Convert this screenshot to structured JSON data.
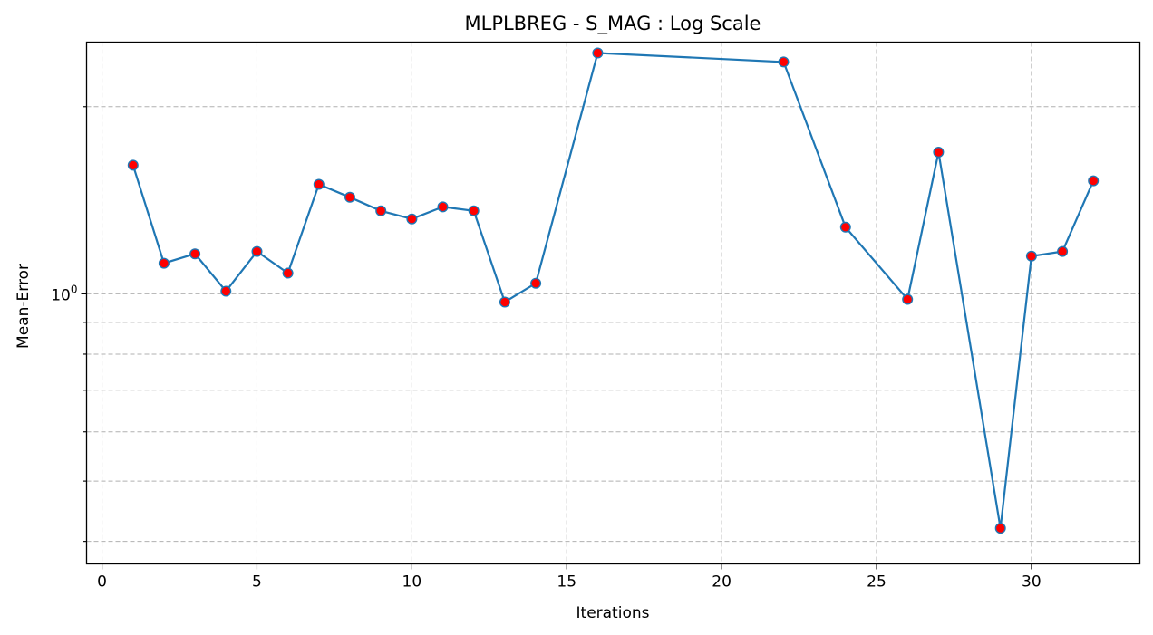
{
  "chart_data": {
    "type": "line",
    "title": "MLPLBREG - S_MAG : Log Scale",
    "xlabel": "Iterations",
    "ylabel": "Mean-Error",
    "yscale": "log",
    "grid": true,
    "xlim": [
      -0.5,
      33.5
    ],
    "ylim": [
      0.368,
      2.54
    ],
    "x_ticks": [
      0,
      5,
      10,
      15,
      20,
      25,
      30
    ],
    "y_major_ticks": [
      1
    ],
    "y_major_tick_labels": [
      "10^0"
    ],
    "y_minor_ticks": [
      0.4,
      0.5,
      0.6,
      0.7,
      0.8,
      0.9,
      2,
      3
    ],
    "line_color": "#1f77b4",
    "marker_face_color": "#ff0000",
    "marker_edge_color": "#1f77b4",
    "series": [
      {
        "x": [
          1,
          2,
          3,
          4,
          5,
          6,
          7,
          8,
          9,
          10,
          11,
          12,
          13,
          14,
          16,
          22,
          24,
          26,
          27,
          29,
          30,
          31,
          32
        ],
        "y": [
          1.61,
          1.12,
          1.16,
          1.01,
          1.17,
          1.08,
          1.5,
          1.43,
          1.36,
          1.32,
          1.38,
          1.36,
          0.97,
          1.04,
          2.44,
          2.36,
          1.28,
          0.98,
          1.69,
          0.42,
          1.15,
          1.17,
          1.52
        ]
      }
    ]
  }
}
